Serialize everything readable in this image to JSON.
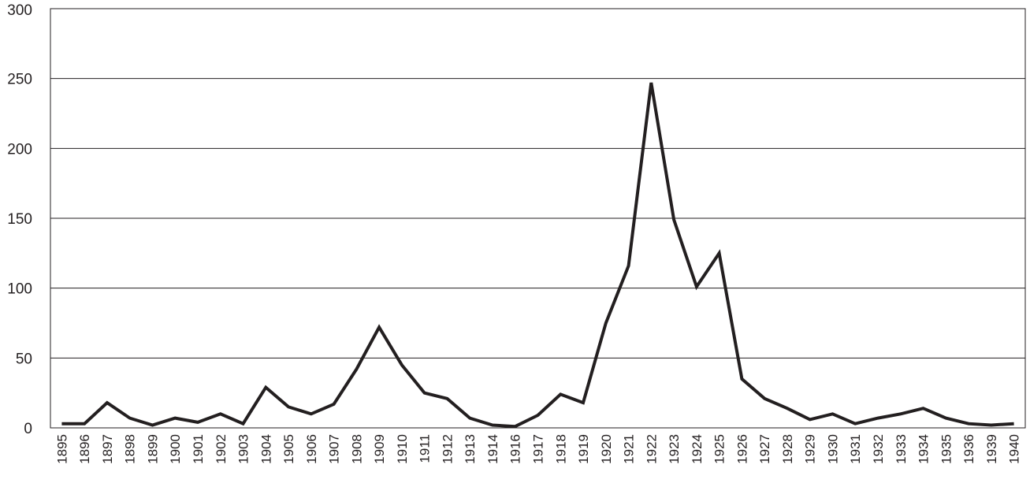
{
  "chart_data": {
    "type": "line",
    "title": "",
    "xlabel": "",
    "ylabel": "",
    "ylim": [
      0,
      300
    ],
    "yticks": [
      "0",
      "50",
      "100",
      "150",
      "200",
      "250",
      "300"
    ],
    "grid": "horizontal",
    "legend": "none",
    "line_color": "#231f20",
    "grid_color": "#231f20",
    "categories": [
      "1895",
      "1896",
      "1897",
      "1898",
      "1899",
      "1900",
      "1901",
      "1902",
      "1903",
      "1904",
      "1905",
      "1906",
      "1907",
      "1908",
      "1909",
      "1910",
      "1911",
      "1912",
      "1913",
      "1914",
      "1916",
      "1917",
      "1918",
      "1919",
      "1920",
      "1921",
      "1922",
      "1923",
      "1924",
      "1925",
      "1926",
      "1927",
      "1928",
      "1929",
      "1930",
      "1931",
      "1932",
      "1933",
      "1934",
      "1935",
      "1936",
      "1939",
      "1940"
    ],
    "values": [
      3,
      3,
      18,
      7,
      2,
      7,
      4,
      10,
      3,
      29,
      15,
      10,
      17,
      42,
      72,
      45,
      25,
      21,
      7,
      2,
      1,
      9,
      24,
      18,
      75,
      116,
      247,
      149,
      101,
      125,
      35,
      21,
      14,
      6,
      10,
      3,
      7,
      10,
      14,
      7,
      3,
      2,
      3
    ]
  }
}
